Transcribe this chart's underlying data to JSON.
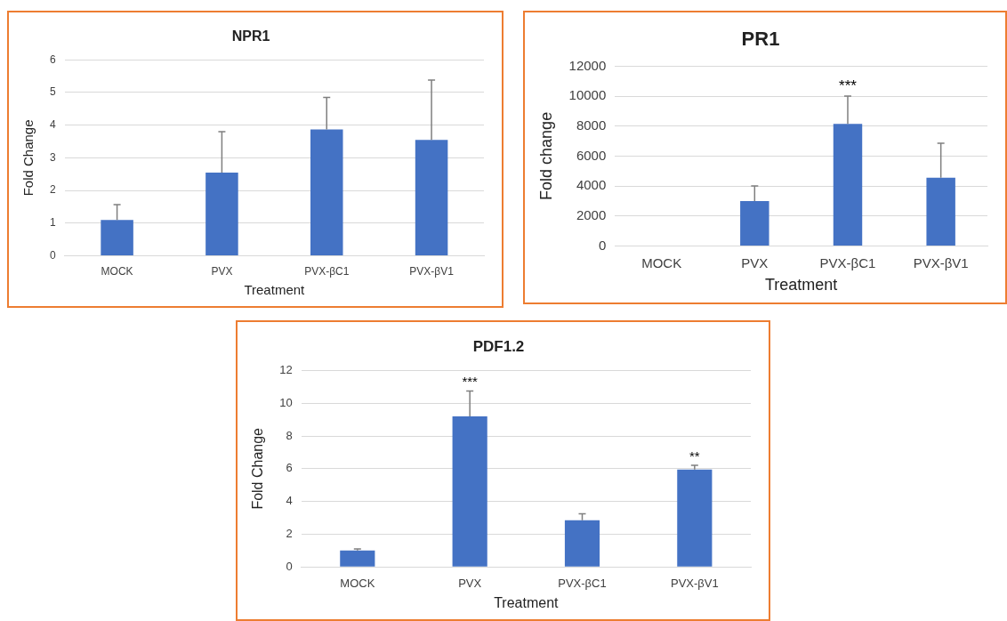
{
  "chart_data": [
    {
      "type": "bar",
      "title": "NPR1",
      "xlabel": "Treatment",
      "ylabel": "Fold Change",
      "categories": [
        "MOCK",
        "PVX",
        "PVX-βC1",
        "PVX-βV1"
      ],
      "values": [
        1.1,
        2.55,
        3.87,
        3.55
      ],
      "color": "#4472c4",
      "errors": [
        [
          1.1,
          1.57
        ],
        [
          2.55,
          3.8
        ],
        [
          3.87,
          4.85
        ],
        [
          3.55,
          5.38
        ]
      ],
      "ylim": [
        0,
        6
      ],
      "yticks": [
        0,
        1,
        2,
        3,
        4,
        5,
        6
      ],
      "grid": "y"
    },
    {
      "type": "bar",
      "title": "PR1",
      "xlabel": "Treatment",
      "ylabel": "Fold change",
      "categories": [
        "MOCK",
        "PVX",
        "PVX-βC1",
        "PVX-βV1"
      ],
      "values": [
        0,
        3000,
        8150,
        4550
      ],
      "color": "#4472c4",
      "errors": [
        null,
        [
          3000,
          4000
        ],
        [
          8150,
          10000
        ],
        [
          4550,
          6850
        ]
      ],
      "ylim": [
        0,
        12000
      ],
      "yticks": [
        0,
        2000,
        4000,
        6000,
        8000,
        10000,
        12000
      ],
      "grid": "y",
      "annotations": [
        {
          "text": "***",
          "x": "PVX-βC1",
          "y": 10000
        }
      ]
    },
    {
      "type": "bar",
      "title": "PDF1.2",
      "xlabel": "Treatment",
      "ylabel": "Fold Change",
      "categories": [
        "MOCK",
        "PVX",
        "PVX-βC1",
        "PVX-βV1"
      ],
      "values": [
        1.0,
        9.2,
        2.85,
        5.95
      ],
      "color": "#4472c4",
      "errors": [
        [
          1.0,
          1.1
        ],
        [
          9.2,
          10.75
        ],
        [
          2.85,
          3.25
        ],
        [
          5.95,
          6.2
        ]
      ],
      "ylim": [
        0,
        12
      ],
      "yticks": [
        0,
        2,
        4,
        6,
        8,
        10,
        12
      ],
      "grid": "y",
      "annotations": [
        {
          "text": "***",
          "x": "PVX",
          "y": 10.75
        },
        {
          "text": "**",
          "x": "PVX-βV1",
          "y": 6.2
        }
      ]
    }
  ]
}
